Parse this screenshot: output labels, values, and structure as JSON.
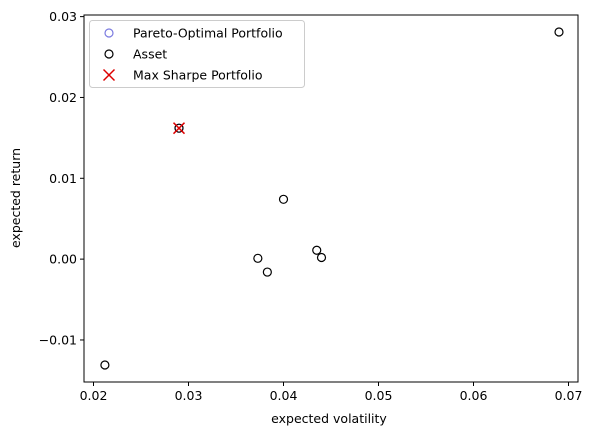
{
  "chart_data": {
    "type": "scatter",
    "xlabel": "expected volatility",
    "ylabel": "expected return",
    "xlim": [
      0.019,
      0.071
    ],
    "ylim": [
      -0.0152,
      0.0302
    ],
    "x_ticks": [
      0.02,
      0.03,
      0.04,
      0.05,
      0.06,
      0.07
    ],
    "x_tick_labels": [
      "0.02",
      "0.03",
      "0.04",
      "0.05",
      "0.06",
      "0.07"
    ],
    "y_ticks": [
      -0.01,
      0.0,
      0.01,
      0.02,
      0.03
    ],
    "y_tick_labels": [
      "−0.01",
      "0.00",
      "0.01",
      "0.02",
      "0.03"
    ],
    "grid": false,
    "legend_position": "top-left",
    "series": [
      {
        "name": "Pareto-Optimal Portfolio",
        "marker": "open-circle",
        "color": "#7b7be0",
        "points": [
          {
            "x": 0.029,
            "y": 0.0162
          }
        ]
      },
      {
        "name": "Asset",
        "marker": "open-circle",
        "color": "#000000",
        "points": [
          {
            "x": 0.0212,
            "y": -0.0131
          },
          {
            "x": 0.029,
            "y": 0.0162
          },
          {
            "x": 0.0373,
            "y": 0.0001
          },
          {
            "x": 0.0383,
            "y": -0.0016
          },
          {
            "x": 0.04,
            "y": 0.0074
          },
          {
            "x": 0.0435,
            "y": 0.0011
          },
          {
            "x": 0.044,
            "y": 0.0002
          },
          {
            "x": 0.069,
            "y": 0.0281
          }
        ]
      },
      {
        "name": "Max Sharpe Portfolio",
        "marker": "x",
        "color": "#dd0000",
        "points": [
          {
            "x": 0.029,
            "y": 0.0162
          }
        ]
      }
    ]
  }
}
